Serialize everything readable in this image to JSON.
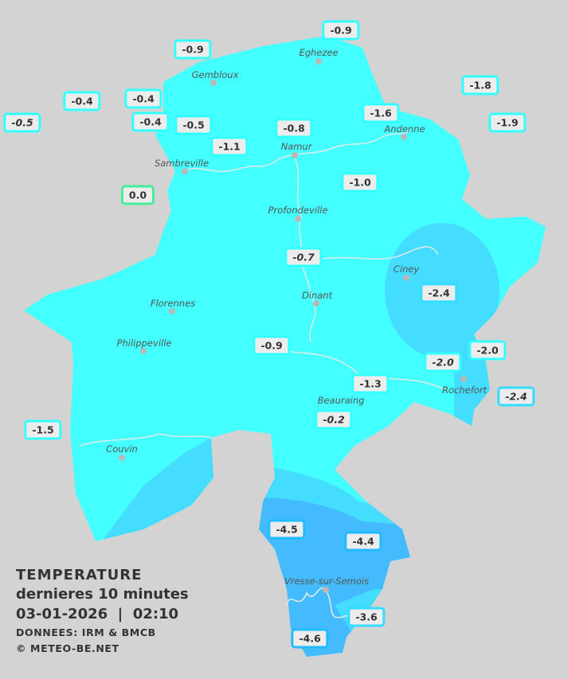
{
  "caption": {
    "title": "TEMPERATURE",
    "subtitle": "dernieres 10 minutes",
    "datetime": "03-01-2026  |  02:10",
    "source": "DONNEES: IRM & BMCB",
    "copyright": "© METEO-BE.NET"
  },
  "colors": {
    "background": "#d3d3d3",
    "zone_light": "#44ffff",
    "zone_mid": "#44ddff",
    "zone_dark": "#44bbff",
    "label_bg": "#ececec"
  },
  "towns": [
    "Eghezee",
    "Gembloux",
    "Andenne",
    "Namur",
    "Sambreville",
    "Profondeville",
    "Ciney",
    "Dinant",
    "Florennes",
    "Philippeville",
    "Beauraing",
    "Rochefort",
    "Couvin",
    "Vresse-sur-Semois"
  ],
  "stations": [
    {
      "value": "-0.9"
    },
    {
      "value": "-0.9"
    },
    {
      "value": "-0.4"
    },
    {
      "value": "-0.4"
    },
    {
      "value": "-0.5",
      "italic": true
    },
    {
      "value": "-0.4"
    },
    {
      "value": "-0.5"
    },
    {
      "value": "-1.1"
    },
    {
      "value": "-0.8"
    },
    {
      "value": "-1.6"
    },
    {
      "value": "-1.8"
    },
    {
      "value": "-1.9"
    },
    {
      "value": "0.0"
    },
    {
      "value": "-1.0"
    },
    {
      "value": "-0.7",
      "italic": true
    },
    {
      "value": "-2.4"
    },
    {
      "value": "-0.9"
    },
    {
      "value": "-2.0"
    },
    {
      "value": "-2.0",
      "italic": true
    },
    {
      "value": "-2.4",
      "italic": true
    },
    {
      "value": "-1.3"
    },
    {
      "value": "-0.2",
      "italic": true
    },
    {
      "value": "-1.5"
    },
    {
      "value": "-4.5"
    },
    {
      "value": "-4.4"
    },
    {
      "value": "-3.6"
    },
    {
      "value": "-4.6"
    }
  ]
}
